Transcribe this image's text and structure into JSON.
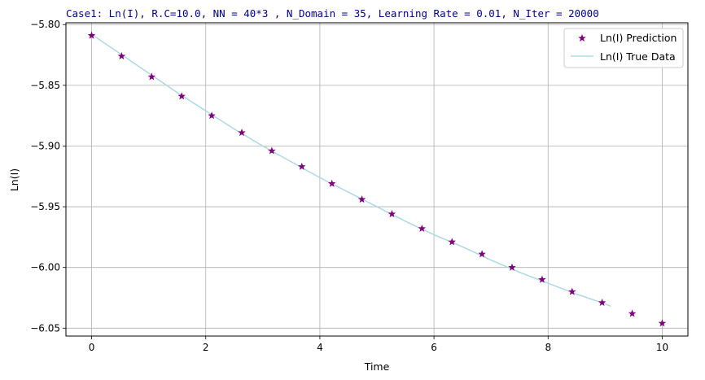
{
  "chart_data": {
    "type": "scatter",
    "title": "Case1: Ln(I), R.C=10.0, NN = 40*3 , N_Domain = 35, Learning Rate = 0.01, N_Iter = 20000",
    "title_color": "#00008b",
    "xlabel": "Time",
    "ylabel": "Ln(I)",
    "xlim": [
      -0.45,
      10.45
    ],
    "ylim": [
      -6.0565,
      -5.7985
    ],
    "xticks": [
      0,
      2,
      4,
      6,
      8,
      10
    ],
    "xtick_labels": [
      "0",
      "2",
      "4",
      "6",
      "8",
      "10"
    ],
    "yticks": [
      -5.8,
      -5.85,
      -5.9,
      -5.95,
      -6.0,
      -6.05
    ],
    "ytick_labels": [
      "−5.80",
      "−5.85",
      "−5.90",
      "−5.95",
      "−6.00",
      "−6.05"
    ],
    "grid": true,
    "legend_position": "top-right",
    "series": [
      {
        "name": "Ln(I) Prediction",
        "kind": "scatter",
        "marker": "star",
        "color": "#800080",
        "x": [
          0.0,
          0.526,
          1.053,
          1.579,
          2.105,
          2.632,
          3.158,
          3.684,
          4.211,
          4.737,
          5.263,
          5.789,
          6.316,
          6.842,
          7.368,
          7.895,
          8.421,
          8.947,
          9.474,
          10.0
        ],
        "y": [
          -5.809,
          -5.826,
          -5.843,
          -5.859,
          -5.875,
          -5.889,
          -5.904,
          -5.917,
          -5.931,
          -5.944,
          -5.956,
          -5.968,
          -5.979,
          -5.989,
          -6.0,
          -6.01,
          -6.02,
          -6.029,
          -6.038,
          -6.046
        ]
      },
      {
        "name": "Ln(I) True Data",
        "kind": "line",
        "color": "#add8e6",
        "x": [
          0.0,
          0.5,
          1.0,
          1.5,
          2.0,
          2.5,
          3.0,
          3.5,
          4.0,
          4.5,
          5.0,
          5.5,
          6.0,
          6.5,
          7.0,
          7.5,
          8.0,
          8.5,
          9.0,
          9.1
        ],
        "y": [
          -5.808,
          -5.824,
          -5.84,
          -5.856,
          -5.871,
          -5.886,
          -5.9,
          -5.913,
          -5.926,
          -5.938,
          -5.95,
          -5.962,
          -5.973,
          -5.983,
          -5.994,
          -6.004,
          -6.013,
          -6.022,
          -6.03,
          -6.032
        ]
      }
    ]
  }
}
